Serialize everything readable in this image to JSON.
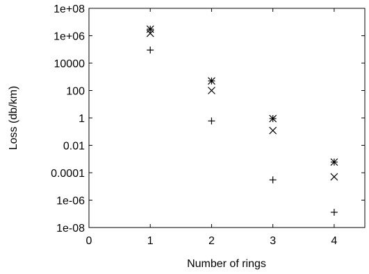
{
  "chart_data": {
    "type": "scatter",
    "xlabel": "Number of rings",
    "ylabel": "Loss (db/km)",
    "xlim": [
      0,
      4.5
    ],
    "ylim": [
      1e-08,
      100000000.0
    ],
    "y_scale": "log",
    "grid": false,
    "x_ticks": [
      0,
      1,
      2,
      3,
      4
    ],
    "x_tick_labels": [
      "0",
      "1",
      "2",
      "3",
      "4"
    ],
    "y_ticks": [
      1e-08,
      1e-06,
      0.0001,
      0.01,
      1,
      100,
      10000,
      1000000,
      100000000
    ],
    "y_tick_labels": [
      "1e-08",
      "1e-06",
      "0.0001",
      "0.01",
      "1",
      "100",
      "10000",
      "1e+06",
      "1e+08"
    ],
    "series": [
      {
        "marker": "star",
        "x": [
          1,
          2,
          3,
          4
        ],
        "y": [
          3000000,
          500,
          0.9,
          0.0006
        ]
      },
      {
        "marker": "cross",
        "x": [
          1,
          2,
          3,
          4
        ],
        "y": [
          1500000,
          100,
          0.12,
          5e-05
        ]
      },
      {
        "marker": "plus",
        "x": [
          1,
          2,
          3,
          4
        ],
        "y": [
          90000,
          0.6,
          3e-05,
          1.3e-07
        ]
      }
    ]
  }
}
